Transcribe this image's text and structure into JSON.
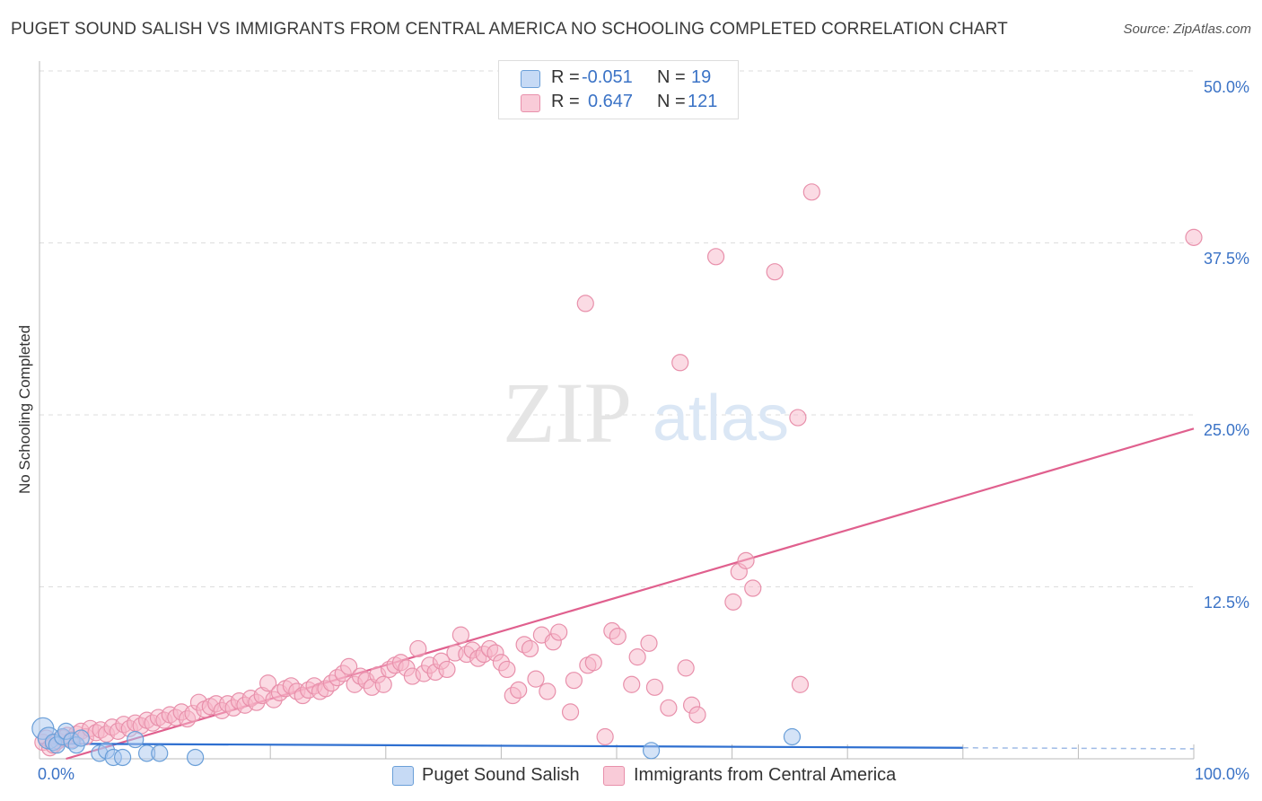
{
  "title": "PUGET SOUND SALISH VS IMMIGRANTS FROM CENTRAL AMERICA NO SCHOOLING COMPLETED CORRELATION CHART",
  "source": "Source: ZipAtlas.com",
  "watermark": {
    "zip": "ZIP",
    "atlas": "atlas"
  },
  "legend": {
    "rows": [
      {
        "r_label": "R =",
        "r_value": "-0.051",
        "n_label": "N =",
        "n_value": "19",
        "color": "#a9c8f0",
        "border": "#6a9fd8"
      },
      {
        "r_label": "R =",
        "r_value": "0.647",
        "n_label": "N =",
        "n_value": "121",
        "color": "#f7b8ca",
        "border": "#e890ab"
      }
    ]
  },
  "bottom_legend": {
    "series1": "Puget Sound Salish",
    "series2": "Immigrants from Central America"
  },
  "chart_data": {
    "type": "scatter",
    "title": "PUGET SOUND SALISH VS IMMIGRANTS FROM CENTRAL AMERICA NO SCHOOLING COMPLETED CORRELATION CHART",
    "xlabel": "",
    "ylabel": "No Schooling Completed",
    "xlim": [
      0,
      100
    ],
    "ylim": [
      0,
      50
    ],
    "x_tick_labels": [
      "0.0%",
      "100.0%"
    ],
    "y_ticks": [
      12.5,
      25.0,
      37.5,
      50.0
    ],
    "y_tick_labels": [
      "12.5%",
      "25.0%",
      "37.5%",
      "50.0%"
    ],
    "series": [
      {
        "name": "Puget Sound Salish",
        "color": "#a9c8f0",
        "stroke": "#6a9fd8",
        "trend": {
          "x0": 0,
          "y0": 1.1,
          "x1": 80,
          "y1": 0.8,
          "dash_to": 100,
          "color": "#2e6fd0"
        },
        "points": [
          [
            0.3,
            2.2
          ],
          [
            0.8,
            1.5
          ],
          [
            1.2,
            1.2
          ],
          [
            1.5,
            1.0
          ],
          [
            2.0,
            1.6
          ],
          [
            2.3,
            2.0
          ],
          [
            2.8,
            1.3
          ],
          [
            3.2,
            1.0
          ],
          [
            3.6,
            1.5
          ],
          [
            5.2,
            0.4
          ],
          [
            5.8,
            0.6
          ],
          [
            6.4,
            0.1
          ],
          [
            7.2,
            0.1
          ],
          [
            8.3,
            1.4
          ],
          [
            9.3,
            0.4
          ],
          [
            10.4,
            0.4
          ],
          [
            13.5,
            0.1
          ],
          [
            53.0,
            0.6
          ],
          [
            65.2,
            1.6
          ]
        ]
      },
      {
        "name": "Immigrants from Central America",
        "color": "#f7b8ca",
        "stroke": "#e890ab",
        "trend": {
          "x0": 2.3,
          "y0": 0.0,
          "x1": 100,
          "y1": 24.0,
          "color": "#e0608e"
        },
        "points": [
          [
            0.3,
            1.2
          ],
          [
            0.6,
            1.5
          ],
          [
            0.9,
            0.8
          ],
          [
            1.2,
            1.0
          ],
          [
            1.6,
            1.3
          ],
          [
            2.0,
            1.5
          ],
          [
            2.4,
            1.7
          ],
          [
            2.8,
            1.4
          ],
          [
            3.2,
            1.8
          ],
          [
            3.6,
            2.0
          ],
          [
            4.0,
            1.6
          ],
          [
            4.4,
            2.2
          ],
          [
            4.9,
            1.9
          ],
          [
            5.3,
            2.1
          ],
          [
            5.8,
            1.8
          ],
          [
            6.3,
            2.3
          ],
          [
            6.8,
            2.0
          ],
          [
            7.3,
            2.5
          ],
          [
            7.8,
            2.2
          ],
          [
            8.3,
            2.6
          ],
          [
            8.8,
            2.4
          ],
          [
            9.3,
            2.8
          ],
          [
            9.8,
            2.6
          ],
          [
            10.3,
            3.0
          ],
          [
            10.8,
            2.8
          ],
          [
            11.3,
            3.2
          ],
          [
            11.8,
            3.0
          ],
          [
            12.3,
            3.4
          ],
          [
            12.8,
            2.9
          ],
          [
            13.3,
            3.3
          ],
          [
            13.8,
            4.1
          ],
          [
            14.3,
            3.6
          ],
          [
            14.8,
            3.8
          ],
          [
            15.3,
            4.0
          ],
          [
            15.8,
            3.5
          ],
          [
            16.3,
            4.0
          ],
          [
            16.8,
            3.7
          ],
          [
            17.3,
            4.2
          ],
          [
            17.8,
            3.9
          ],
          [
            18.3,
            4.4
          ],
          [
            18.8,
            4.1
          ],
          [
            19.3,
            4.6
          ],
          [
            19.8,
            5.5
          ],
          [
            20.3,
            4.3
          ],
          [
            20.8,
            4.8
          ],
          [
            21.3,
            5.1
          ],
          [
            21.8,
            5.3
          ],
          [
            22.3,
            4.9
          ],
          [
            22.8,
            4.6
          ],
          [
            23.3,
            5.0
          ],
          [
            23.8,
            5.3
          ],
          [
            24.3,
            4.9
          ],
          [
            24.8,
            5.1
          ],
          [
            25.3,
            5.5
          ],
          [
            25.8,
            5.9
          ],
          [
            26.3,
            6.2
          ],
          [
            26.8,
            6.7
          ],
          [
            27.3,
            5.4
          ],
          [
            27.8,
            6.0
          ],
          [
            28.3,
            5.7
          ],
          [
            28.8,
            5.2
          ],
          [
            29.3,
            6.1
          ],
          [
            29.8,
            5.4
          ],
          [
            30.3,
            6.5
          ],
          [
            30.8,
            6.8
          ],
          [
            31.3,
            7.0
          ],
          [
            31.8,
            6.6
          ],
          [
            32.3,
            6.0
          ],
          [
            32.8,
            8.0
          ],
          [
            33.3,
            6.2
          ],
          [
            33.8,
            6.8
          ],
          [
            34.3,
            6.3
          ],
          [
            34.8,
            7.1
          ],
          [
            35.3,
            6.5
          ],
          [
            36.0,
            7.7
          ],
          [
            36.5,
            9.0
          ],
          [
            37.0,
            7.6
          ],
          [
            37.5,
            7.9
          ],
          [
            38.0,
            7.3
          ],
          [
            38.5,
            7.6
          ],
          [
            39.0,
            8.0
          ],
          [
            39.5,
            7.7
          ],
          [
            40.0,
            7.0
          ],
          [
            40.5,
            6.5
          ],
          [
            41.0,
            4.6
          ],
          [
            41.5,
            5.0
          ],
          [
            42.0,
            8.3
          ],
          [
            42.5,
            8.0
          ],
          [
            43.0,
            5.8
          ],
          [
            43.5,
            9.0
          ],
          [
            44.0,
            4.9
          ],
          [
            44.5,
            8.5
          ],
          [
            45.0,
            9.2
          ],
          [
            46.0,
            3.4
          ],
          [
            46.3,
            5.7
          ],
          [
            47.5,
            6.8
          ],
          [
            48.0,
            7.0
          ],
          [
            49.0,
            1.6
          ],
          [
            49.6,
            9.3
          ],
          [
            50.1,
            8.9
          ],
          [
            51.3,
            5.4
          ],
          [
            51.8,
            7.4
          ],
          [
            52.8,
            8.4
          ],
          [
            53.3,
            5.2
          ],
          [
            54.5,
            3.7
          ],
          [
            55.5,
            28.8
          ],
          [
            56.0,
            6.6
          ],
          [
            56.5,
            3.9
          ],
          [
            57.0,
            3.2
          ],
          [
            60.1,
            11.4
          ],
          [
            60.6,
            13.6
          ],
          [
            61.2,
            14.4
          ],
          [
            61.8,
            12.4
          ],
          [
            63.7,
            35.4
          ],
          [
            65.7,
            24.8
          ],
          [
            65.9,
            5.4
          ],
          [
            66.9,
            41.2
          ],
          [
            100.0,
            37.9
          ],
          [
            58.6,
            36.5
          ],
          [
            47.3,
            33.1
          ]
        ]
      }
    ]
  }
}
